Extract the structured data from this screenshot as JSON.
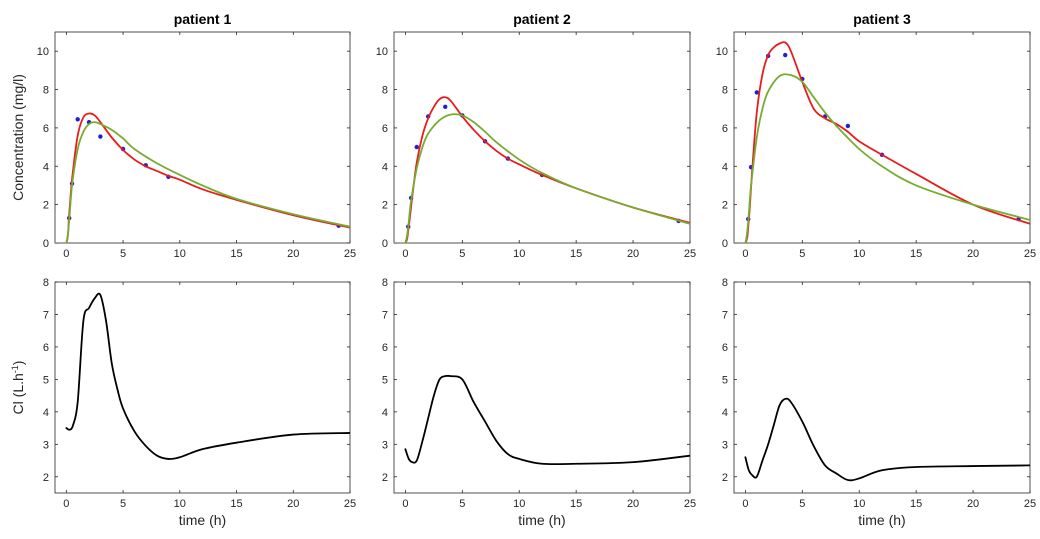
{
  "colors": {
    "obs": "#1f1fd6",
    "red": "#e81c1c",
    "green": "#77ac30",
    "black": "#000000",
    "axis": "#262626"
  },
  "chart_data": [
    {
      "type": "line",
      "title": "patient 1",
      "xlabel": "",
      "ylabel": "Concentration (mg/l)",
      "xlim": [
        -1,
        25
      ],
      "ylim": [
        0,
        11
      ],
      "xticks": [
        0,
        5,
        10,
        15,
        20,
        25
      ],
      "yticks": [
        0,
        2,
        4,
        6,
        8,
        10
      ],
      "series": [
        {
          "kind": "scatter",
          "color_key": "obs",
          "x": [
            0.25,
            0.5,
            1,
            2,
            3,
            5,
            7,
            9,
            24
          ],
          "y": [
            1.3,
            3.1,
            6.45,
            6.3,
            5.55,
            4.9,
            4.05,
            3.45,
            0.9
          ]
        },
        {
          "kind": "line",
          "color_key": "red",
          "x": [
            -1,
            0,
            0.25,
            0.5,
            1,
            1.5,
            2,
            2.5,
            3,
            4,
            5,
            6,
            7,
            8,
            9,
            10,
            12,
            15,
            20,
            25
          ],
          "y": [
            0,
            0,
            1.5,
            3.3,
            5.6,
            6.55,
            6.75,
            6.65,
            6.3,
            5.5,
            4.85,
            4.35,
            4.0,
            3.75,
            3.5,
            3.3,
            2.8,
            2.25,
            1.45,
            0.8
          ]
        },
        {
          "kind": "line",
          "color_key": "green",
          "x": [
            -1,
            0,
            0.5,
            1,
            1.5,
            2,
            2.5,
            3,
            4,
            5,
            6,
            8,
            10,
            12,
            15,
            20,
            25
          ],
          "y": [
            0,
            0,
            3.0,
            4.9,
            5.8,
            6.2,
            6.3,
            6.2,
            5.9,
            5.45,
            4.9,
            4.15,
            3.55,
            3.0,
            2.3,
            1.5,
            0.85
          ]
        }
      ]
    },
    {
      "type": "line",
      "title": "patient 2",
      "xlabel": "",
      "ylabel": "",
      "xlim": [
        -1,
        25
      ],
      "ylim": [
        0,
        11
      ],
      "xticks": [
        0,
        5,
        10,
        15,
        20,
        25
      ],
      "yticks": [
        0,
        2,
        4,
        6,
        8,
        10
      ],
      "series": [
        {
          "kind": "scatter",
          "color_key": "obs",
          "x": [
            0.25,
            0.5,
            1,
            2,
            3.5,
            5,
            7,
            9,
            12,
            24
          ],
          "y": [
            0.85,
            2.35,
            5.0,
            6.6,
            7.1,
            6.65,
            5.3,
            4.4,
            3.55,
            1.15
          ]
        },
        {
          "kind": "line",
          "color_key": "red",
          "x": [
            -1,
            0,
            0.3,
            0.6,
            1,
            1.5,
            2,
            2.5,
            3,
            3.5,
            4,
            5,
            6,
            7,
            8,
            9,
            10,
            12,
            15,
            20,
            25
          ],
          "y": [
            0,
            0,
            0.9,
            2.4,
            4.2,
            5.6,
            6.5,
            7.1,
            7.5,
            7.6,
            7.4,
            6.6,
            5.9,
            5.3,
            4.8,
            4.4,
            4.1,
            3.55,
            2.85,
            1.85,
            1.05
          ]
        },
        {
          "kind": "line",
          "color_key": "green",
          "x": [
            -1,
            0,
            0.5,
            1,
            1.5,
            2,
            3,
            4,
            5,
            6,
            7,
            8,
            10,
            12,
            15,
            20,
            25
          ],
          "y": [
            0,
            0,
            2.2,
            3.9,
            5.0,
            5.7,
            6.4,
            6.7,
            6.65,
            6.3,
            5.8,
            5.25,
            4.35,
            3.65,
            2.85,
            1.85,
            1.0
          ]
        }
      ]
    },
    {
      "type": "line",
      "title": "patient 3",
      "xlabel": "",
      "ylabel": "",
      "xlim": [
        -1,
        25
      ],
      "ylim": [
        0,
        11
      ],
      "xticks": [
        0,
        5,
        10,
        15,
        20,
        25
      ],
      "yticks": [
        0,
        2,
        4,
        6,
        8,
        10
      ],
      "series": [
        {
          "kind": "scatter",
          "color_key": "obs",
          "x": [
            0.25,
            0.5,
            1,
            2,
            3.5,
            5,
            7,
            9,
            12,
            24
          ],
          "y": [
            1.25,
            3.95,
            7.85,
            9.75,
            9.8,
            8.55,
            6.6,
            6.1,
            4.6,
            1.25
          ]
        },
        {
          "kind": "line",
          "color_key": "red",
          "x": [
            -1,
            0,
            0.3,
            0.6,
            1,
            1.5,
            2,
            2.5,
            3,
            3.5,
            4,
            5,
            6,
            7,
            8,
            9,
            10,
            12,
            15,
            20,
            25
          ],
          "y": [
            0,
            0,
            1.2,
            3.8,
            6.8,
            8.8,
            9.8,
            10.2,
            10.4,
            10.45,
            10.0,
            8.4,
            7.0,
            6.5,
            6.2,
            5.8,
            5.3,
            4.6,
            3.6,
            2.0,
            1.0
          ]
        },
        {
          "kind": "line",
          "color_key": "green",
          "x": [
            -1,
            0,
            0.5,
            1,
            1.5,
            2,
            3,
            4,
            5,
            6,
            7,
            8,
            10,
            12,
            15,
            20,
            25
          ],
          "y": [
            0,
            0,
            3.0,
            5.5,
            7.0,
            7.9,
            8.7,
            8.75,
            8.4,
            7.6,
            6.8,
            6.1,
            4.9,
            4.0,
            3.0,
            2.0,
            1.2
          ]
        }
      ]
    },
    {
      "type": "line",
      "title": "",
      "xlabel": "time (h)",
      "ylabel": "Cl (L.h",
      "ylabel_sup": "-1",
      "ylabel_end": ")",
      "xlim": [
        -1,
        25
      ],
      "ylim": [
        1.5,
        8
      ],
      "xticks": [
        0,
        5,
        10,
        15,
        20,
        25
      ],
      "yticks": [
        2,
        3,
        4,
        5,
        6,
        7,
        8
      ],
      "series": [
        {
          "kind": "line",
          "color_key": "black",
          "x": [
            0,
            0.3,
            0.6,
            1,
            1.5,
            2,
            2.5,
            3,
            3.5,
            4,
            4.5,
            5,
            6,
            7,
            8,
            9,
            10,
            12,
            15,
            20,
            25
          ],
          "y": [
            3.5,
            3.45,
            3.6,
            4.3,
            6.8,
            7.2,
            7.5,
            7.6,
            6.8,
            5.5,
            4.7,
            4.1,
            3.4,
            2.95,
            2.65,
            2.55,
            2.6,
            2.85,
            3.05,
            3.3,
            3.35
          ]
        }
      ]
    },
    {
      "type": "line",
      "title": "",
      "xlabel": "time (h)",
      "ylabel": "",
      "xlim": [
        -1,
        25
      ],
      "ylim": [
        1.5,
        8
      ],
      "xticks": [
        0,
        5,
        10,
        15,
        20,
        25
      ],
      "yticks": [
        2,
        3,
        4,
        5,
        6,
        7,
        8
      ],
      "series": [
        {
          "kind": "line",
          "color_key": "black",
          "x": [
            0,
            0.3,
            0.6,
            1,
            1.5,
            2,
            2.5,
            3,
            3.5,
            4,
            5,
            6,
            7,
            8,
            9,
            10,
            12,
            15,
            20,
            25
          ],
          "y": [
            2.85,
            2.55,
            2.45,
            2.5,
            3.1,
            3.8,
            4.5,
            5.0,
            5.1,
            5.1,
            5.0,
            4.3,
            3.7,
            3.1,
            2.7,
            2.55,
            2.4,
            2.4,
            2.45,
            2.65
          ]
        }
      ]
    },
    {
      "type": "line",
      "title": "",
      "xlabel": "time (h)",
      "ylabel": "",
      "xlim": [
        -1,
        25
      ],
      "ylim": [
        1.5,
        8
      ],
      "xticks": [
        0,
        5,
        10,
        15,
        20,
        25
      ],
      "yticks": [
        2,
        3,
        4,
        5,
        6,
        7,
        8
      ],
      "series": [
        {
          "kind": "line",
          "color_key": "black",
          "x": [
            0,
            0.3,
            0.6,
            1,
            1.5,
            2,
            2.5,
            3,
            3.5,
            4,
            5,
            6,
            7,
            8,
            9,
            10,
            12,
            15,
            20,
            25
          ],
          "y": [
            2.6,
            2.2,
            2.05,
            2.0,
            2.5,
            3.0,
            3.6,
            4.2,
            4.4,
            4.3,
            3.7,
            2.95,
            2.35,
            2.1,
            1.9,
            1.95,
            2.2,
            2.3,
            2.33,
            2.35
          ]
        }
      ]
    }
  ]
}
